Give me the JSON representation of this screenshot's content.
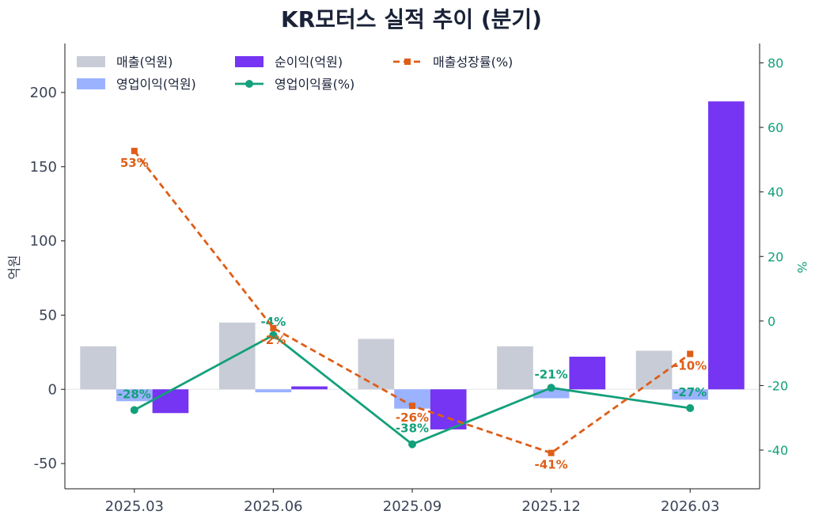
{
  "chart_data": {
    "type": "bar",
    "title": "KR모터스 실적 추이 (분기)",
    "categories": [
      "2025.03",
      "2025.06",
      "2025.09",
      "2025.12",
      "2026.03"
    ],
    "ylabel": "억원",
    "ylim": [
      -67,
      233
    ],
    "yticks": [
      -50,
      0,
      50,
      100,
      150,
      200
    ],
    "y2label": "%",
    "y2lim": [
      -52,
      86
    ],
    "y2ticks": [
      -40,
      -20,
      0,
      20,
      40,
      60,
      80
    ],
    "grid": false,
    "legend": "top-left",
    "bar_series": [
      {
        "name": "매출(억원)",
        "color": "#c8ccd6",
        "values": [
          29,
          45,
          34,
          29,
          26
        ]
      },
      {
        "name": "영업이익(억원)",
        "color": "#9bb2ff",
        "values": [
          -8,
          -2,
          -13,
          -6,
          -7
        ]
      },
      {
        "name": "순이익(억원)",
        "color": "#7535f2",
        "values": [
          -16,
          2,
          -27,
          22,
          194
        ]
      }
    ],
    "line_series": [
      {
        "name": "영업이익률(%)",
        "color": "#13a07a",
        "style": "solid",
        "marker": "circle",
        "values": [
          -27.6,
          -4.4,
          -38.2,
          -20.7,
          -27.0
        ],
        "labels": [
          "-28%",
          "-4%",
          "-38%",
          "-21%",
          "-27%"
        ]
      },
      {
        "name": "매출성장률(%)",
        "color": "#dd5e18",
        "style": "dashed",
        "marker": "square",
        "values": [
          52.7,
          -2.2,
          -26.3,
          -40.9,
          -10.2
        ],
        "labels": [
          "53%",
          "-2%",
          "-26%",
          "-41%",
          "-10%"
        ]
      }
    ]
  }
}
